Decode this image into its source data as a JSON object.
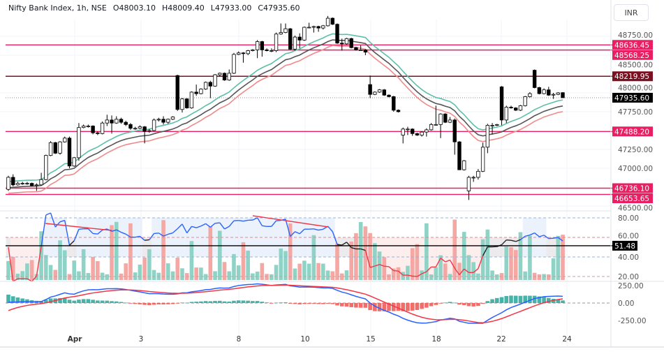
{
  "header": {
    "symbol": "Nifty Bank Index, 1h, NSE",
    "open": "O48003.10",
    "high": "H48009.40",
    "low": "L47933.00",
    "close": "C47935.60"
  },
  "currency_button": "INR",
  "price_axis": [
    "48750.00",
    "48500.00",
    "48000.00",
    "47750.00",
    "47250.00",
    "47000.00",
    "46500.00"
  ],
  "levels": [
    {
      "label": "48636.45",
      "value": 48636.45,
      "color": "#e91e63"
    },
    {
      "label": "48568.25",
      "value": 48568.25,
      "color": "#e91e63"
    },
    {
      "label": "48219.95",
      "value": 48219.95,
      "color": "#7b1020"
    },
    {
      "label": "47488.20",
      "value": 47488.2,
      "color": "#e91e63"
    },
    {
      "label": "46736.10",
      "value": 46736.1,
      "color": "#e91e63"
    },
    {
      "label": "46653.65",
      "value": 46653.65,
      "color": "#e91e63"
    }
  ],
  "last_price": {
    "label": "47935.60",
    "value": 47935.6
  },
  "rsi_axis": [
    "80.00",
    "60.00",
    "40.00",
    "20.00"
  ],
  "rsi_value": {
    "label": "51.48",
    "value": 51.48
  },
  "macd_axis": [
    "250.00",
    "0.00",
    "-250.00"
  ],
  "x_labels": [
    "Apr",
    "3",
    "8",
    "10",
    "15",
    "18",
    "22",
    "24"
  ],
  "colors": {
    "up": "#ffffff",
    "down": "#000000",
    "ma_fast": "#5cbfa8",
    "ma_mid": "#555555",
    "ma_slow": "#f08a8a",
    "vol_up": "#8fd3c6",
    "vol_down": "#f4a7a3",
    "macd": "#2962ff",
    "signal": "#f23645"
  },
  "chart_data": {
    "type": "candlestick",
    "title": "Nifty Bank Index, 1h, NSE",
    "ylim": [
      46450,
      49050
    ],
    "rsi_ylim": [
      15,
      85
    ],
    "macd_ylim": [
      -300,
      300
    ],
    "x_tick_labels": [
      "Apr",
      "3",
      "8",
      "10",
      "15",
      "18",
      "22",
      "24"
    ],
    "ohlc": [
      [
        46720,
        46900,
        46700,
        46880
      ],
      [
        46880,
        46920,
        46760,
        46780
      ],
      [
        46780,
        46820,
        46770,
        46800
      ],
      [
        46800,
        46820,
        46780,
        46800
      ],
      [
        46800,
        46820,
        46780,
        46800
      ],
      [
        46800,
        46810,
        46760,
        46770
      ],
      [
        46770,
        46800,
        46700,
        46780
      ],
      [
        46780,
        46940,
        46770,
        46850
      ],
      [
        46850,
        47180,
        46840,
        47170
      ],
      [
        47170,
        47360,
        47160,
        47340
      ],
      [
        47340,
        47350,
        47190,
        47200
      ],
      [
        47200,
        47360,
        47180,
        47350
      ],
      [
        47350,
        47420,
        47340,
        47400
      ],
      [
        47400,
        47420,
        47000,
        47030
      ],
      [
        47030,
        47150,
        47020,
        47140
      ],
      [
        47140,
        47600,
        47100,
        47540
      ],
      [
        47540,
        47580,
        47530,
        47560
      ],
      [
        47560,
        47580,
        47540,
        47560
      ],
      [
        47560,
        47570,
        47450,
        47470
      ],
      [
        47470,
        47490,
        47440,
        47460
      ],
      [
        47460,
        47620,
        47450,
        47600
      ],
      [
        47600,
        47710,
        47560,
        47640
      ],
      [
        47640,
        47700,
        47460,
        47600
      ],
      [
        47600,
        47690,
        47590,
        47650
      ],
      [
        47650,
        47670,
        47590,
        47610
      ],
      [
        47610,
        47630,
        47560,
        47580
      ],
      [
        47580,
        47600,
        47510,
        47530
      ],
      [
        47530,
        47550,
        47510,
        47530
      ],
      [
        47530,
        47570,
        47520,
        47550
      ],
      [
        47550,
        47560,
        47330,
        47490
      ],
      [
        47490,
        47520,
        47470,
        47500
      ],
      [
        47500,
        47660,
        47490,
        47640
      ],
      [
        47640,
        47670,
        47620,
        47650
      ],
      [
        47650,
        47690,
        47580,
        47610
      ],
      [
        47610,
        47660,
        47590,
        47650
      ],
      [
        47650,
        47690,
        47640,
        47680
      ],
      [
        48230,
        48240,
        47760,
        47780
      ],
      [
        47780,
        47930,
        47740,
        47920
      ],
      [
        47920,
        47930,
        47790,
        47800
      ],
      [
        47800,
        48020,
        47790,
        48010
      ],
      [
        48010,
        48110,
        47960,
        47990
      ],
      [
        47990,
        48060,
        47980,
        48050
      ],
      [
        48050,
        48150,
        48040,
        48140
      ],
      [
        48140,
        48160,
        47930,
        48090
      ],
      [
        48090,
        48250,
        48080,
        48240
      ],
      [
        48240,
        48270,
        48220,
        48260
      ],
      [
        48260,
        48270,
        48160,
        48170
      ],
      [
        48170,
        48310,
        48160,
        48260
      ],
      [
        48260,
        48530,
        48250,
        48510
      ],
      [
        48510,
        48550,
        48500,
        48530
      ],
      [
        48530,
        48540,
        48400,
        48520
      ],
      [
        48520,
        48570,
        48500,
        48560
      ],
      [
        48560,
        48580,
        48550,
        48570
      ],
      [
        48570,
        48700,
        48460,
        48680
      ],
      [
        48680,
        48690,
        48480,
        48570
      ],
      [
        48570,
        48590,
        48550,
        48560
      ],
      [
        48560,
        48590,
        48540,
        48560
      ],
      [
        48560,
        48800,
        48540,
        48780
      ],
      [
        48780,
        48920,
        48770,
        48800
      ],
      [
        48800,
        48920,
        48790,
        48850
      ],
      [
        48850,
        48860,
        48570,
        48580
      ],
      [
        48580,
        48760,
        48560,
        48740
      ],
      [
        48740,
        48790,
        48590,
        48700
      ],
      [
        48700,
        48880,
        48690,
        48870
      ],
      [
        48870,
        48930,
        48860,
        48870
      ],
      [
        48870,
        48890,
        48800,
        48880
      ],
      [
        48880,
        48890,
        48810,
        48860
      ],
      [
        48860,
        48900,
        48840,
        48890
      ],
      [
        48890,
        49020,
        48880,
        48990
      ],
      [
        48990,
        49000,
        48900,
        48910
      ],
      [
        48910,
        48920,
        48650,
        48660
      ],
      [
        48660,
        48720,
        48560,
        48650
      ],
      [
        48650,
        48730,
        48640,
        48720
      ],
      [
        48720,
        48730,
        48590,
        48600
      ],
      [
        48600,
        48610,
        48560,
        48570
      ],
      [
        48570,
        48630,
        48560,
        48570
      ],
      [
        48570,
        48580,
        48500,
        48540
      ],
      [
        48110,
        48230,
        47930,
        47980
      ],
      [
        47980,
        48020,
        47970,
        48010
      ],
      [
        48010,
        48050,
        48000,
        48040
      ],
      [
        48040,
        48050,
        47960,
        47970
      ],
      [
        47970,
        47980,
        47940,
        47950
      ],
      [
        47950,
        47960,
        47750,
        47770
      ],
      [
        47770,
        47780,
        47740,
        47750
      ],
      [
        47440,
        47540,
        47330,
        47520
      ],
      [
        47520,
        47550,
        47440,
        47520
      ],
      [
        47520,
        47530,
        47430,
        47460
      ],
      [
        47460,
        47470,
        47430,
        47440
      ],
      [
        47440,
        47490,
        47420,
        47480
      ],
      [
        47480,
        47530,
        47420,
        47510
      ],
      [
        47510,
        47600,
        47500,
        47580
      ],
      [
        47580,
        47830,
        47570,
        47580
      ],
      [
        47580,
        47730,
        47400,
        47720
      ],
      [
        47720,
        47730,
        47600,
        47610
      ],
      [
        47610,
        47680,
        47600,
        47640
      ],
      [
        47640,
        47660,
        47180,
        47350
      ],
      [
        47350,
        47360,
        46980,
        46980
      ],
      [
        46980,
        47110,
        46970,
        47100
      ],
      [
        46700,
        46900,
        46580,
        46880
      ],
      [
        46880,
        46900,
        46820,
        46880
      ],
      [
        46880,
        46990,
        46850,
        46960
      ],
      [
        46960,
        47340,
        46950,
        47280
      ],
      [
        47280,
        47590,
        47200,
        47570
      ],
      [
        47570,
        47600,
        47450,
        47570
      ],
      [
        47570,
        47590,
        47560,
        47580
      ],
      [
        48080,
        48090,
        47570,
        47640
      ],
      [
        47640,
        47830,
        47600,
        47810
      ],
      [
        47810,
        47830,
        47790,
        47800
      ],
      [
        47800,
        47810,
        47760,
        47770
      ],
      [
        47770,
        47840,
        47760,
        47830
      ],
      [
        47830,
        47960,
        47820,
        47950
      ],
      [
        47950,
        48010,
        47940,
        47990
      ],
      [
        48300,
        48310,
        48060,
        48070
      ],
      [
        48070,
        48080,
        47980,
        47990
      ],
      [
        47990,
        48060,
        47980,
        48040
      ],
      [
        48040,
        48080,
        47960,
        47970
      ],
      [
        47970,
        48000,
        47920,
        47980
      ],
      [
        47980,
        48010,
        47970,
        48000
      ],
      [
        48003.1,
        48009.4,
        47933,
        47935.6
      ]
    ]
  }
}
